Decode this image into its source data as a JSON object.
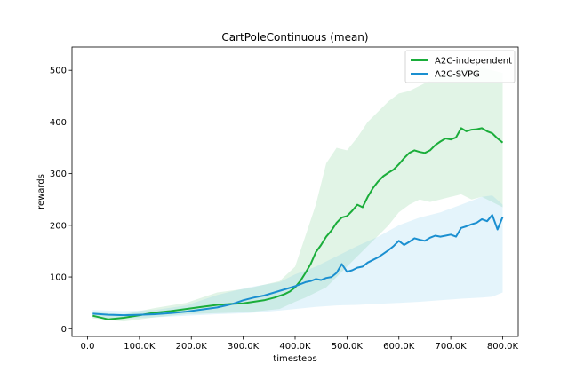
{
  "chart_data": {
    "type": "line",
    "title": "CartPoleContinuous (mean)",
    "xlabel": "timesteps",
    "ylabel": "rewards",
    "xlim": [
      -30000,
      830000
    ],
    "ylim": [
      -15,
      545
    ],
    "x_ticks": [
      0,
      100000,
      200000,
      300000,
      400000,
      500000,
      600000,
      700000,
      800000
    ],
    "x_tick_labels": [
      "0.0",
      "100.0K",
      "200.0K",
      "300.0K",
      "400.0K",
      "500.0K",
      "600.0K",
      "700.0K",
      "800.0K"
    ],
    "y_ticks": [
      0,
      100,
      200,
      300,
      400,
      500
    ],
    "y_tick_labels": [
      "0",
      "100",
      "200",
      "300",
      "400",
      "500"
    ],
    "grid": false,
    "legend_position": "top-right",
    "series": [
      {
        "name": "A2C-independent",
        "color": "#1aad3a",
        "band_color": "#1aad3a",
        "points": [
          [
            10000,
            25
          ],
          [
            40000,
            18
          ],
          [
            70000,
            21
          ],
          [
            100000,
            26
          ],
          [
            130000,
            31
          ],
          [
            160000,
            34
          ],
          [
            190000,
            38
          ],
          [
            220000,
            42
          ],
          [
            250000,
            46
          ],
          [
            280000,
            48
          ],
          [
            300000,
            49
          ],
          [
            320000,
            52
          ],
          [
            340000,
            55
          ],
          [
            360000,
            60
          ],
          [
            380000,
            67
          ],
          [
            390000,
            72
          ],
          [
            400000,
            80
          ],
          [
            410000,
            92
          ],
          [
            420000,
            108
          ],
          [
            430000,
            125
          ],
          [
            440000,
            148
          ],
          [
            450000,
            162
          ],
          [
            460000,
            178
          ],
          [
            470000,
            190
          ],
          [
            480000,
            205
          ],
          [
            490000,
            215
          ],
          [
            500000,
            218
          ],
          [
            510000,
            228
          ],
          [
            520000,
            240
          ],
          [
            530000,
            235
          ],
          [
            540000,
            255
          ],
          [
            550000,
            272
          ],
          [
            560000,
            285
          ],
          [
            570000,
            295
          ],
          [
            580000,
            302
          ],
          [
            590000,
            308
          ],
          [
            600000,
            318
          ],
          [
            610000,
            330
          ],
          [
            620000,
            340
          ],
          [
            630000,
            345
          ],
          [
            640000,
            342
          ],
          [
            650000,
            340
          ],
          [
            660000,
            345
          ],
          [
            670000,
            355
          ],
          [
            680000,
            362
          ],
          [
            690000,
            368
          ],
          [
            700000,
            366
          ],
          [
            710000,
            370
          ],
          [
            720000,
            388
          ],
          [
            730000,
            382
          ],
          [
            740000,
            385
          ],
          [
            750000,
            386
          ],
          [
            760000,
            388
          ],
          [
            770000,
            382
          ],
          [
            780000,
            378
          ],
          [
            790000,
            368
          ],
          [
            800000,
            360
          ]
        ],
        "band": [
          [
            10000,
            20,
            32
          ],
          [
            70000,
            14,
            28
          ],
          [
            130000,
            22,
            40
          ],
          [
            190000,
            28,
            50
          ],
          [
            250000,
            30,
            70
          ],
          [
            310000,
            32,
            78
          ],
          [
            370000,
            38,
            92
          ],
          [
            400000,
            52,
            120
          ],
          [
            420000,
            60,
            180
          ],
          [
            440000,
            70,
            240
          ],
          [
            460000,
            80,
            320
          ],
          [
            480000,
            100,
            350
          ],
          [
            500000,
            120,
            345
          ],
          [
            520000,
            140,
            370
          ],
          [
            540000,
            160,
            400
          ],
          [
            560000,
            180,
            420
          ],
          [
            580000,
            200,
            440
          ],
          [
            600000,
            225,
            455
          ],
          [
            620000,
            240,
            460
          ],
          [
            640000,
            250,
            470
          ],
          [
            660000,
            245,
            480
          ],
          [
            680000,
            250,
            490
          ],
          [
            700000,
            255,
            495
          ],
          [
            720000,
            260,
            505
          ],
          [
            740000,
            250,
            500
          ],
          [
            760000,
            255,
            505
          ],
          [
            780000,
            245,
            500
          ],
          [
            800000,
            235,
            495
          ]
        ]
      },
      {
        "name": "A2C-SVPG",
        "color": "#1a8fd0",
        "band_color": "#6cc0ea",
        "points": [
          [
            10000,
            29
          ],
          [
            40000,
            27
          ],
          [
            70000,
            26
          ],
          [
            100000,
            27
          ],
          [
            130000,
            28
          ],
          [
            160000,
            30
          ],
          [
            190000,
            33
          ],
          [
            220000,
            37
          ],
          [
            250000,
            41
          ],
          [
            280000,
            48
          ],
          [
            300000,
            55
          ],
          [
            320000,
            60
          ],
          [
            340000,
            64
          ],
          [
            360000,
            70
          ],
          [
            380000,
            76
          ],
          [
            400000,
            82
          ],
          [
            410000,
            86
          ],
          [
            420000,
            90
          ],
          [
            430000,
            92
          ],
          [
            440000,
            96
          ],
          [
            450000,
            94
          ],
          [
            460000,
            98
          ],
          [
            470000,
            100
          ],
          [
            480000,
            108
          ],
          [
            490000,
            125
          ],
          [
            500000,
            110
          ],
          [
            510000,
            113
          ],
          [
            520000,
            118
          ],
          [
            530000,
            120
          ],
          [
            540000,
            128
          ],
          [
            550000,
            133
          ],
          [
            560000,
            138
          ],
          [
            570000,
            145
          ],
          [
            580000,
            152
          ],
          [
            590000,
            160
          ],
          [
            600000,
            170
          ],
          [
            610000,
            162
          ],
          [
            620000,
            168
          ],
          [
            630000,
            175
          ],
          [
            640000,
            172
          ],
          [
            650000,
            170
          ],
          [
            660000,
            176
          ],
          [
            670000,
            180
          ],
          [
            680000,
            178
          ],
          [
            690000,
            180
          ],
          [
            700000,
            182
          ],
          [
            710000,
            178
          ],
          [
            720000,
            195
          ],
          [
            730000,
            198
          ],
          [
            740000,
            202
          ],
          [
            750000,
            205
          ],
          [
            760000,
            212
          ],
          [
            770000,
            208
          ],
          [
            780000,
            220
          ],
          [
            790000,
            192
          ],
          [
            800000,
            216
          ]
        ],
        "band": [
          [
            10000,
            22,
            36
          ],
          [
            70000,
            20,
            34
          ],
          [
            130000,
            22,
            36
          ],
          [
            190000,
            25,
            45
          ],
          [
            250000,
            28,
            65
          ],
          [
            310000,
            30,
            80
          ],
          [
            370000,
            35,
            90
          ],
          [
            400000,
            38,
            105
          ],
          [
            440000,
            42,
            120
          ],
          [
            480000,
            45,
            140
          ],
          [
            520000,
            46,
            160
          ],
          [
            560000,
            48,
            178
          ],
          [
            600000,
            50,
            200
          ],
          [
            640000,
            52,
            215
          ],
          [
            680000,
            55,
            225
          ],
          [
            720000,
            58,
            240
          ],
          [
            760000,
            60,
            255
          ],
          [
            780000,
            62,
            258
          ],
          [
            800000,
            70,
            240
          ]
        ]
      }
    ]
  }
}
